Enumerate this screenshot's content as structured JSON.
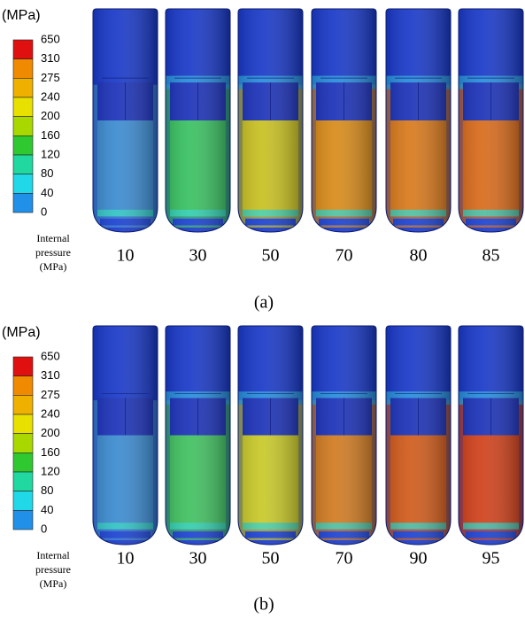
{
  "panels": [
    {
      "unit": "(MPa)",
      "legend_labels": [
        "650",
        "310",
        "275",
        "240",
        "200",
        "160",
        "120",
        "80",
        "40",
        "0"
      ],
      "caption": [
        "Internal",
        "pressure",
        "(MPa)"
      ],
      "pressures": [
        "10",
        "30",
        "50",
        "70",
        "80",
        "85"
      ],
      "label": "(a)"
    },
    {
      "unit": "(MPa)",
      "legend_labels": [
        "650",
        "310",
        "275",
        "240",
        "200",
        "160",
        "120",
        "80",
        "40",
        "0"
      ],
      "caption": [
        "Internal",
        "pressure",
        "(MPa)"
      ],
      "pressures": [
        "10",
        "30",
        "50",
        "70",
        "90",
        "95"
      ],
      "label": "(b)"
    }
  ]
}
